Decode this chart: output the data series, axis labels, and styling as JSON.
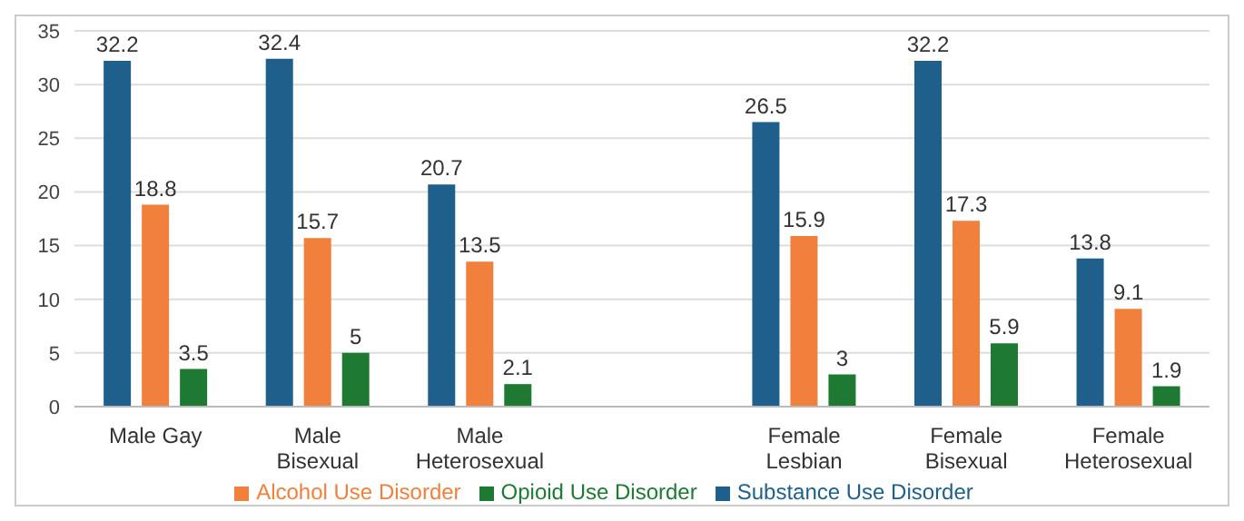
{
  "chart_data": {
    "type": "bar",
    "categories": [
      "Male Gay",
      "Male Bisexual",
      "Male Heterosexual",
      null,
      "Female Lesbian",
      "Female Bisexual",
      "Female Heterosexual"
    ],
    "series": [
      {
        "name": "Substance Use Disorder",
        "color": "#1f5f8b",
        "values": [
          32.2,
          32.4,
          20.7,
          null,
          26.5,
          32.2,
          13.8
        ]
      },
      {
        "name": "Alcohol Use Disorder",
        "color": "#f0803c",
        "values": [
          18.8,
          15.7,
          13.5,
          null,
          15.9,
          17.3,
          9.1
        ]
      },
      {
        "name": "Opioid Use Disorder",
        "color": "#1e7a33",
        "values": [
          3.5,
          5,
          2.1,
          null,
          3,
          5.9,
          1.9
        ]
      }
    ],
    "ylim": [
      0,
      35
    ],
    "yticks": [
      0,
      5,
      10,
      15,
      20,
      25,
      30,
      35
    ],
    "grid": "y",
    "legend": "bottom",
    "data_labels": true
  }
}
